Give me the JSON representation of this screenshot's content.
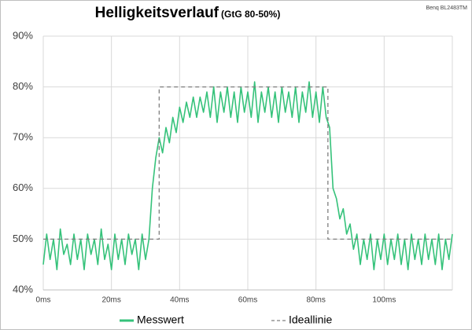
{
  "chart_data": {
    "type": "line",
    "title": "Helligkeitsverlauf",
    "subtitle": "(GtG 80-50%)",
    "annotation": "Benq BL2483TM",
    "xlim": [
      0,
      120
    ],
    "ylim": [
      40,
      90
    ],
    "xticks": [
      {
        "value": 0,
        "label": "0ms"
      },
      {
        "value": 20,
        "label": "20ms"
      },
      {
        "value": 40,
        "label": "40ms"
      },
      {
        "value": 60,
        "label": "60ms"
      },
      {
        "value": 80,
        "label": "80ms"
      },
      {
        "value": 100,
        "label": "100ms"
      }
    ],
    "yticks": [
      {
        "value": 40,
        "label": "40%"
      },
      {
        "value": 50,
        "label": "50%"
      },
      {
        "value": 60,
        "label": "60%"
      },
      {
        "value": 70,
        "label": "70%"
      },
      {
        "value": 80,
        "label": "80%"
      },
      {
        "value": 90,
        "label": "90%"
      }
    ],
    "grid": true,
    "legend": "bottom",
    "series": [
      {
        "name": "Messwert",
        "color": "#35c27a",
        "dashed": false,
        "x": [
          0,
          1,
          2,
          3,
          4,
          5,
          6,
          7,
          8,
          9,
          10,
          11,
          12,
          13,
          14,
          15,
          16,
          17,
          18,
          19,
          20,
          21,
          22,
          23,
          24,
          25,
          26,
          27,
          28,
          29,
          30,
          31,
          32,
          33,
          34,
          35,
          36,
          37,
          38,
          39,
          40,
          41,
          42,
          43,
          44,
          45,
          46,
          47,
          48,
          49,
          50,
          51,
          52,
          53,
          54,
          55,
          56,
          57,
          58,
          59,
          60,
          61,
          62,
          63,
          64,
          65,
          66,
          67,
          68,
          69,
          70,
          71,
          72,
          73,
          74,
          75,
          76,
          77,
          78,
          79,
          80,
          81,
          82,
          83,
          84,
          85,
          86,
          87,
          88,
          89,
          90,
          91,
          92,
          93,
          94,
          95,
          96,
          97,
          98,
          99,
          100,
          101,
          102,
          103,
          104,
          105,
          106,
          107,
          108,
          109,
          110,
          111,
          112,
          113,
          114,
          115,
          116,
          117,
          118,
          119,
          120
        ],
        "values": [
          45,
          51,
          46,
          50,
          44,
          52,
          47,
          49,
          45,
          51,
          46,
          50,
          44,
          51,
          47,
          50,
          45,
          52,
          46,
          49,
          44,
          51,
          46,
          50,
          45,
          51,
          47,
          50,
          44,
          51,
          46,
          50,
          60,
          66,
          70,
          67,
          72,
          69,
          74,
          71,
          76,
          73,
          77,
          74,
          78,
          74,
          78,
          75,
          79,
          74,
          80,
          73,
          79,
          75,
          80,
          74,
          79,
          73,
          80,
          75,
          79,
          74,
          81,
          73,
          79,
          75,
          80,
          74,
          79,
          73,
          80,
          75,
          79,
          74,
          80,
          73,
          79,
          75,
          81,
          74,
          79,
          73,
          80,
          74,
          72,
          60,
          58,
          54,
          56,
          51,
          53,
          48,
          51,
          45,
          50,
          46,
          51,
          44,
          50,
          46,
          51,
          45,
          50,
          46,
          51,
          45,
          50,
          44,
          51,
          46,
          50,
          45,
          51,
          46,
          50,
          45,
          51,
          44,
          50,
          46,
          51
        ]
      },
      {
        "name": "Ideallinie",
        "color": "#7f7f7f",
        "dashed": true,
        "x": [
          0,
          34,
          34,
          83.5,
          83.5,
          120
        ],
        "values": [
          50,
          50,
          80,
          80,
          50,
          50
        ]
      }
    ]
  }
}
